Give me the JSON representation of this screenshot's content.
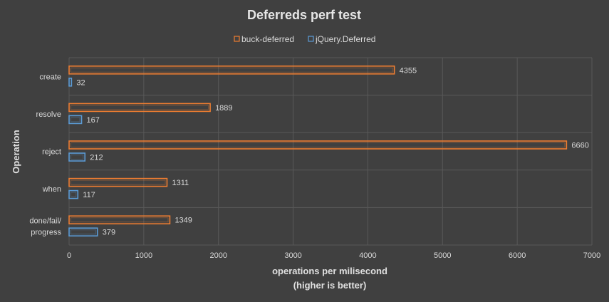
{
  "chart_data": {
    "type": "bar",
    "orientation": "horizontal",
    "title": "Deferreds perf test",
    "xlabel_line1": "operations per milisecond",
    "xlabel_line2": "(higher is better)",
    "ylabel": "Operation",
    "categories": [
      [
        "create"
      ],
      [
        "resolve"
      ],
      [
        "reject"
      ],
      [
        "when"
      ],
      [
        "done/fail/",
        "progress"
      ]
    ],
    "series": [
      {
        "name": "buck-deferred",
        "color": "#ed7d31",
        "values": [
          4355,
          1889,
          6660,
          1311,
          1349
        ]
      },
      {
        "name": "jQuery.Deferred",
        "color": "#5b9bd5",
        "values": [
          32,
          167,
          212,
          117,
          379
        ]
      }
    ],
    "xlim": [
      0,
      7000
    ],
    "xticks": [
      0,
      1000,
      2000,
      3000,
      4000,
      5000,
      6000,
      7000
    ],
    "grid": true,
    "legend_position": "top",
    "bar_style": "outline"
  }
}
